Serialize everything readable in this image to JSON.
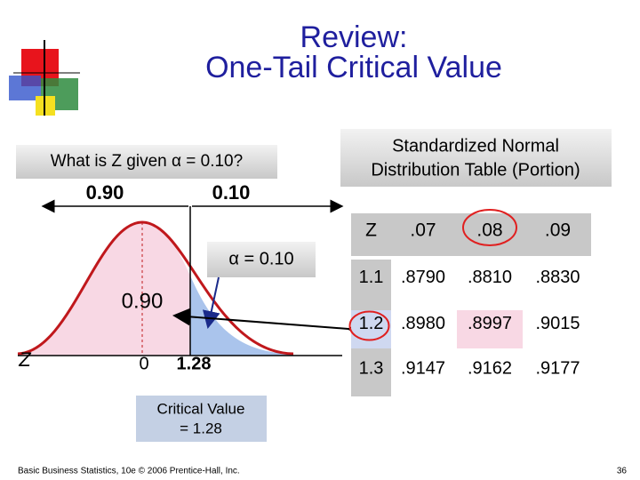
{
  "header": {
    "title_lines": [
      "Review:",
      "One-Tail Critical Value"
    ]
  },
  "question": "What is Z given α = 0.10?",
  "table_caption_lines": [
    "Standardized Normal",
    "Distribution Table (Portion)"
  ],
  "diagram": {
    "left_area_top": "0.90",
    "right_area_top": "0.10",
    "alpha_label": "α = 0.10",
    "left_area_label": "0.90",
    "axis_label": "Z",
    "mean_label": "0",
    "critical_label": "1.28",
    "critical_value_lines": [
      "Critical Value",
      "= 1.28"
    ]
  },
  "table": {
    "header": [
      "Z",
      ".07",
      ".08",
      ".09"
    ],
    "rows": [
      [
        "1.1",
        ".8790",
        ".8810",
        ".8830"
      ],
      [
        "1.2",
        ".8980",
        ".8997",
        ".9015"
      ],
      [
        "1.3",
        ".9147",
        ".9162",
        ".9177"
      ]
    ]
  },
  "footer": {
    "source": "Basic Business Statistics, 10e © 2006 Prentice-Hall, Inc.",
    "page": "36"
  }
}
